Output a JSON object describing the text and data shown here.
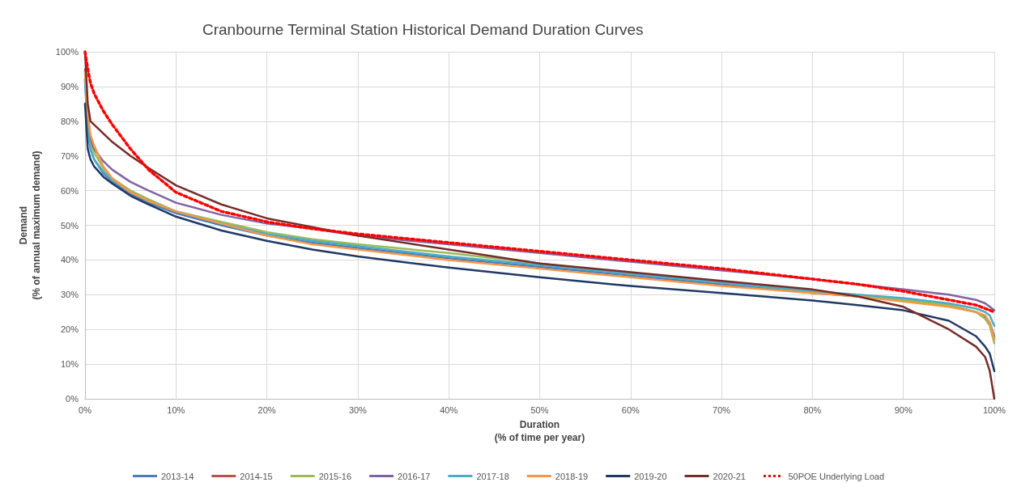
{
  "chart_data": {
    "type": "line",
    "title": "Cranbourne Terminal Station Historical Demand Duration Curves",
    "xlabel": "Duration\n(% of time per year)",
    "ylabel": "Demand\n(% of annual maximum demand)",
    "x": [
      0,
      0.3,
      0.6,
      1,
      2,
      3,
      5,
      7,
      10,
      15,
      20,
      25,
      30,
      40,
      50,
      60,
      70,
      80,
      85,
      90,
      95,
      98,
      99,
      99.5,
      100
    ],
    "series": [
      {
        "name": "2013-14",
        "color": "#4a7ebb",
        "values": [
          92,
          78,
          72,
          69,
          65,
          62.5,
          59,
          56.5,
          53.5,
          50,
          47,
          45,
          43.5,
          40.5,
          38,
          35.5,
          33,
          30.5,
          29.5,
          28.5,
          27,
          25,
          23.5,
          22,
          18
        ]
      },
      {
        "name": "2014-15",
        "color": "#c0504d",
        "values": [
          null,
          null,
          null,
          null,
          null,
          null,
          null,
          null,
          null,
          null,
          null,
          null,
          null,
          null,
          null,
          null,
          null,
          null,
          null,
          null,
          null,
          null,
          null,
          null,
          null
        ]
      },
      {
        "name": "2015-16",
        "color": "#9bbb59",
        "values": [
          94,
          80,
          74,
          71,
          66.5,
          63.5,
          60,
          57.5,
          54,
          51,
          48,
          46,
          44.5,
          42,
          39,
          36,
          33.5,
          31,
          29.5,
          28.5,
          27,
          25,
          23,
          21,
          16
        ]
      },
      {
        "name": "2016-17",
        "color": "#8064a2",
        "values": [
          95,
          82,
          75,
          72,
          68.5,
          66,
          62.5,
          60,
          56.5,
          53,
          50.5,
          49,
          47,
          44.5,
          42,
          39.5,
          37,
          34.5,
          33,
          31.5,
          30,
          28.5,
          27.5,
          26.5,
          25.5
        ]
      },
      {
        "name": "2017-18",
        "color": "#4bacc6",
        "values": [
          92,
          77,
          72,
          69,
          65.5,
          63,
          59.5,
          57,
          54,
          50.5,
          47.5,
          45.5,
          44,
          41,
          38.5,
          36,
          33.5,
          31,
          30,
          29,
          27.5,
          26,
          25,
          24,
          21
        ]
      },
      {
        "name": "2018-19",
        "color": "#f79646",
        "values": [
          94,
          82,
          76,
          73,
          67,
          63.5,
          59.5,
          57,
          54,
          50.5,
          47,
          44.5,
          43,
          40,
          37.5,
          35,
          32.5,
          30.5,
          29.5,
          28,
          26.5,
          25,
          24,
          22,
          17
        ]
      },
      {
        "name": "2019-20",
        "color": "#1f3864",
        "values": [
          85,
          72,
          69,
          67,
          64,
          62,
          58.5,
          56,
          52.5,
          48.5,
          45.5,
          43,
          41,
          37.8,
          35,
          32.5,
          30.5,
          28.3,
          27,
          25.5,
          22.5,
          18,
          15,
          13,
          8
        ]
      },
      {
        "name": "2020-21",
        "color": "#772c2a",
        "values": [
          100,
          85,
          80,
          79,
          76.5,
          74,
          70,
          66.5,
          61.5,
          56,
          52,
          49.5,
          47,
          43,
          39,
          36.5,
          34,
          31.5,
          29.5,
          26.5,
          20,
          15,
          12,
          8,
          0
        ]
      },
      {
        "name": "50POE Underlying Load",
        "color": "#ff0000",
        "line_style": "dotted",
        "values": [
          100,
          95,
          91,
          88,
          83,
          79,
          72,
          66,
          59.5,
          54,
          51,
          49,
          47.5,
          45,
          42.5,
          40,
          37.5,
          34.5,
          33,
          31,
          28.5,
          27,
          26,
          25.5,
          25
        ]
      }
    ],
    "xlim": [
      0,
      100
    ],
    "ylim": [
      0,
      100
    ],
    "xticks": [
      {
        "value": 0,
        "label": "0%"
      },
      {
        "value": 10,
        "label": "10%"
      },
      {
        "value": 20,
        "label": "20%"
      },
      {
        "value": 30,
        "label": "30%"
      },
      {
        "value": 40,
        "label": "40%"
      },
      {
        "value": 50,
        "label": "50%"
      },
      {
        "value": 60,
        "label": "60%"
      },
      {
        "value": 70,
        "label": "70%"
      },
      {
        "value": 80,
        "label": "80%"
      },
      {
        "value": 90,
        "label": "90%"
      },
      {
        "value": 100,
        "label": "100%"
      }
    ],
    "yticks": [
      {
        "value": 0,
        "label": "0%"
      },
      {
        "value": 10,
        "label": "10%"
      },
      {
        "value": 20,
        "label": "20%"
      },
      {
        "value": 30,
        "label": "30%"
      },
      {
        "value": 40,
        "label": "40%"
      },
      {
        "value": 50,
        "label": "50%"
      },
      {
        "value": 60,
        "label": "60%"
      },
      {
        "value": 70,
        "label": "70%"
      },
      {
        "value": 80,
        "label": "80%"
      },
      {
        "value": 90,
        "label": "90%"
      },
      {
        "value": 100,
        "label": "100%"
      }
    ],
    "grid": true,
    "legend": "bottom",
    "marker": "none",
    "line_style": "solid"
  }
}
